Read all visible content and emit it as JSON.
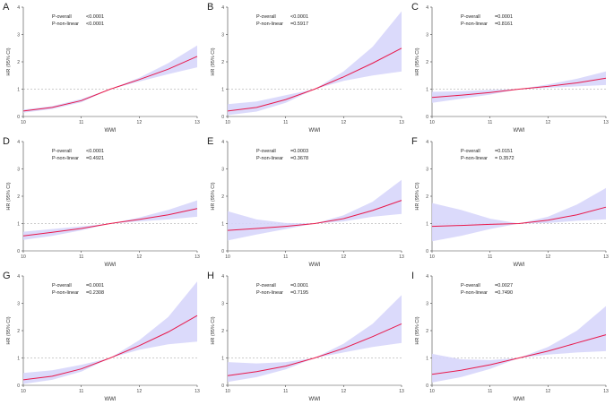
{
  "chart_data": [
    {
      "type": "line",
      "panel": "A",
      "p_overall_label": "P-overall",
      "p_overall": "<0.0001",
      "p_nonlinear_label": "P-non-linear",
      "p_nonlinear": "<0.0001",
      "xlabel": "WWI",
      "ylabel": "HR (95% CI)",
      "xlim": [
        10,
        13
      ],
      "ylim": [
        0,
        4
      ],
      "x_ticks": [
        10,
        11,
        12,
        13
      ],
      "y_ticks": [
        0,
        1,
        2,
        3,
        4
      ],
      "reference_y": 1,
      "series": [
        {
          "x": [
            10,
            10.5,
            11,
            11.5,
            12,
            12.5,
            13
          ],
          "y": [
            0.2,
            0.33,
            0.58,
            1.0,
            1.35,
            1.73,
            2.2
          ],
          "lower": [
            0.14,
            0.27,
            0.52,
            1.0,
            1.28,
            1.55,
            1.8
          ],
          "upper": [
            0.25,
            0.38,
            0.64,
            1.0,
            1.42,
            1.95,
            2.6
          ]
        }
      ]
    },
    {
      "type": "line",
      "panel": "B",
      "p_overall_label": "P-overall",
      "p_overall": "<0.0001",
      "p_nonlinear_label": "P-non-linear",
      "p_nonlinear": "=0.5917",
      "xlabel": "WWI",
      "ylabel": "HR (95% CI)",
      "xlim": [
        10,
        13
      ],
      "ylim": [
        0,
        4
      ],
      "x_ticks": [
        10,
        11,
        12,
        13
      ],
      "y_ticks": [
        0,
        1,
        2,
        3,
        4
      ],
      "reference_y": 1,
      "series": [
        {
          "x": [
            10,
            10.5,
            11,
            11.5,
            12,
            12.5,
            13
          ],
          "y": [
            0.2,
            0.33,
            0.62,
            1.0,
            1.45,
            1.95,
            2.5
          ],
          "lower": [
            0.05,
            0.18,
            0.5,
            1.0,
            1.3,
            1.5,
            1.65
          ],
          "upper": [
            0.45,
            0.55,
            0.78,
            1.0,
            1.65,
            2.55,
            3.85
          ]
        }
      ]
    },
    {
      "type": "line",
      "panel": "C",
      "p_overall_label": "P-overall",
      "p_overall": "=0.0001",
      "p_nonlinear_label": "P-non-linear",
      "p_nonlinear": "=0.8161",
      "xlabel": "WWI",
      "ylabel": "HR (95% CI)",
      "xlim": [
        10,
        13
      ],
      "ylim": [
        0,
        4
      ],
      "x_ticks": [
        10,
        11,
        12,
        13
      ],
      "y_ticks": [
        0,
        1,
        2,
        3,
        4
      ],
      "reference_y": 1,
      "series": [
        {
          "x": [
            10,
            10.5,
            11,
            11.5,
            12,
            12.5,
            13
          ],
          "y": [
            0.7,
            0.78,
            0.88,
            1.0,
            1.1,
            1.23,
            1.4
          ],
          "lower": [
            0.5,
            0.65,
            0.8,
            1.0,
            1.05,
            1.1,
            1.15
          ],
          "upper": [
            0.9,
            0.92,
            0.97,
            1.0,
            1.17,
            1.38,
            1.65
          ]
        }
      ]
    },
    {
      "type": "line",
      "panel": "D",
      "p_overall_label": "P-overall",
      "p_overall": "<0.0001",
      "p_nonlinear_label": "P-non-linear",
      "p_nonlinear": "=0.4921",
      "xlabel": "WWI",
      "ylabel": "HR (95% CI)",
      "xlim": [
        10,
        13
      ],
      "ylim": [
        0,
        4
      ],
      "x_ticks": [
        10,
        11,
        12,
        13
      ],
      "y_ticks": [
        0,
        1,
        2,
        3,
        4
      ],
      "reference_y": 1,
      "series": [
        {
          "x": [
            10,
            10.5,
            11,
            11.5,
            12,
            12.5,
            13
          ],
          "y": [
            0.55,
            0.68,
            0.82,
            1.0,
            1.15,
            1.32,
            1.55
          ],
          "lower": [
            0.4,
            0.55,
            0.75,
            1.0,
            1.08,
            1.15,
            1.25
          ],
          "upper": [
            0.7,
            0.8,
            0.9,
            1.0,
            1.22,
            1.5,
            1.85
          ]
        }
      ]
    },
    {
      "type": "line",
      "panel": "E",
      "p_overall_label": "P-overall",
      "p_overall": "=0.0003",
      "p_nonlinear_label": "P-non-linear",
      "p_nonlinear": "=0.3678",
      "xlabel": "WWI",
      "ylabel": "HR (95% CI)",
      "xlim": [
        10,
        13
      ],
      "ylim": [
        0,
        4
      ],
      "x_ticks": [
        10,
        11,
        12,
        13
      ],
      "y_ticks": [
        0,
        1,
        2,
        3,
        4
      ],
      "reference_y": 1,
      "series": [
        {
          "x": [
            10,
            10.5,
            11,
            11.5,
            12,
            12.5,
            13
          ],
          "y": [
            0.75,
            0.82,
            0.9,
            1.0,
            1.18,
            1.48,
            1.85
          ],
          "lower": [
            0.38,
            0.6,
            0.8,
            1.0,
            1.08,
            1.25,
            1.35
          ],
          "upper": [
            1.45,
            1.15,
            1.02,
            1.0,
            1.3,
            1.8,
            2.6
          ]
        }
      ]
    },
    {
      "type": "line",
      "panel": "F",
      "p_overall_label": "P-overall",
      "p_overall": "=0.0151",
      "p_nonlinear_label": "P-non-linear",
      "p_nonlinear": "= 0.3572",
      "xlabel": "WWI",
      "ylabel": "HR (95% CI)",
      "xlim": [
        10,
        13
      ],
      "ylim": [
        0,
        4
      ],
      "x_ticks": [
        10,
        11,
        12,
        13
      ],
      "y_ticks": [
        0,
        1,
        2,
        3,
        4
      ],
      "reference_y": 1,
      "series": [
        {
          "x": [
            10,
            10.5,
            11,
            11.5,
            12,
            12.5,
            13
          ],
          "y": [
            0.9,
            0.93,
            0.97,
            1.0,
            1.12,
            1.32,
            1.6
          ],
          "lower": [
            0.35,
            0.55,
            0.8,
            1.0,
            1.02,
            1.1,
            1.15
          ],
          "upper": [
            1.75,
            1.5,
            1.18,
            1.0,
            1.25,
            1.7,
            2.3
          ]
        }
      ]
    },
    {
      "type": "line",
      "panel": "G",
      "p_overall_label": "P-overall",
      "p_overall": "=0.0001",
      "p_nonlinear_label": "P-non-linear",
      "p_nonlinear": "=0.2308",
      "xlabel": "WWI",
      "ylabel": "HR (95% CI)",
      "xlim": [
        10,
        13
      ],
      "ylim": [
        0,
        4
      ],
      "x_ticks": [
        10,
        11,
        12,
        13
      ],
      "y_ticks": [
        0,
        1,
        2,
        3,
        4
      ],
      "reference_y": 1,
      "series": [
        {
          "x": [
            10,
            10.5,
            11,
            11.5,
            12,
            12.5,
            13
          ],
          "y": [
            0.2,
            0.33,
            0.6,
            1.0,
            1.45,
            1.95,
            2.55
          ],
          "lower": [
            0.05,
            0.2,
            0.5,
            1.0,
            1.3,
            1.5,
            1.6
          ],
          "upper": [
            0.45,
            0.55,
            0.75,
            1.0,
            1.65,
            2.5,
            3.8
          ]
        }
      ]
    },
    {
      "type": "line",
      "panel": "H",
      "p_overall_label": "P-overall",
      "p_overall": "=0.0001",
      "p_nonlinear_label": "P-non-linear",
      "p_nonlinear": "=0.7195",
      "xlabel": "WWI",
      "ylabel": "HR (95% CI)",
      "xlim": [
        10,
        13
      ],
      "ylim": [
        0,
        4
      ],
      "x_ticks": [
        10,
        11,
        12,
        13
      ],
      "y_ticks": [
        0,
        1,
        2,
        3,
        4
      ],
      "reference_y": 1,
      "series": [
        {
          "x": [
            10,
            10.5,
            11,
            11.5,
            12,
            12.5,
            13
          ],
          "y": [
            0.35,
            0.5,
            0.7,
            1.0,
            1.35,
            1.78,
            2.25
          ],
          "lower": [
            0.12,
            0.3,
            0.58,
            1.0,
            1.2,
            1.4,
            1.55
          ],
          "upper": [
            0.85,
            0.8,
            0.85,
            1.0,
            1.52,
            2.25,
            3.3
          ]
        }
      ]
    },
    {
      "type": "line",
      "panel": "I",
      "p_overall_label": "P-overall",
      "p_overall": "=0.0027",
      "p_nonlinear_label": "P-non-linear",
      "p_nonlinear": "=0.7490",
      "xlabel": "WWI",
      "ylabel": "HR (95% CI)",
      "xlim": [
        10,
        13
      ],
      "ylim": [
        0,
        4
      ],
      "x_ticks": [
        10,
        11,
        12,
        13
      ],
      "y_ticks": [
        0,
        1,
        2,
        3,
        4
      ],
      "reference_y": 1,
      "series": [
        {
          "x": [
            10,
            10.5,
            11,
            11.5,
            12,
            12.5,
            13
          ],
          "y": [
            0.4,
            0.55,
            0.75,
            1.0,
            1.25,
            1.55,
            1.85
          ],
          "lower": [
            0.1,
            0.3,
            0.6,
            1.0,
            1.12,
            1.2,
            1.25
          ],
          "upper": [
            1.15,
            0.95,
            0.92,
            1.0,
            1.4,
            2.0,
            2.9
          ]
        }
      ]
    }
  ]
}
